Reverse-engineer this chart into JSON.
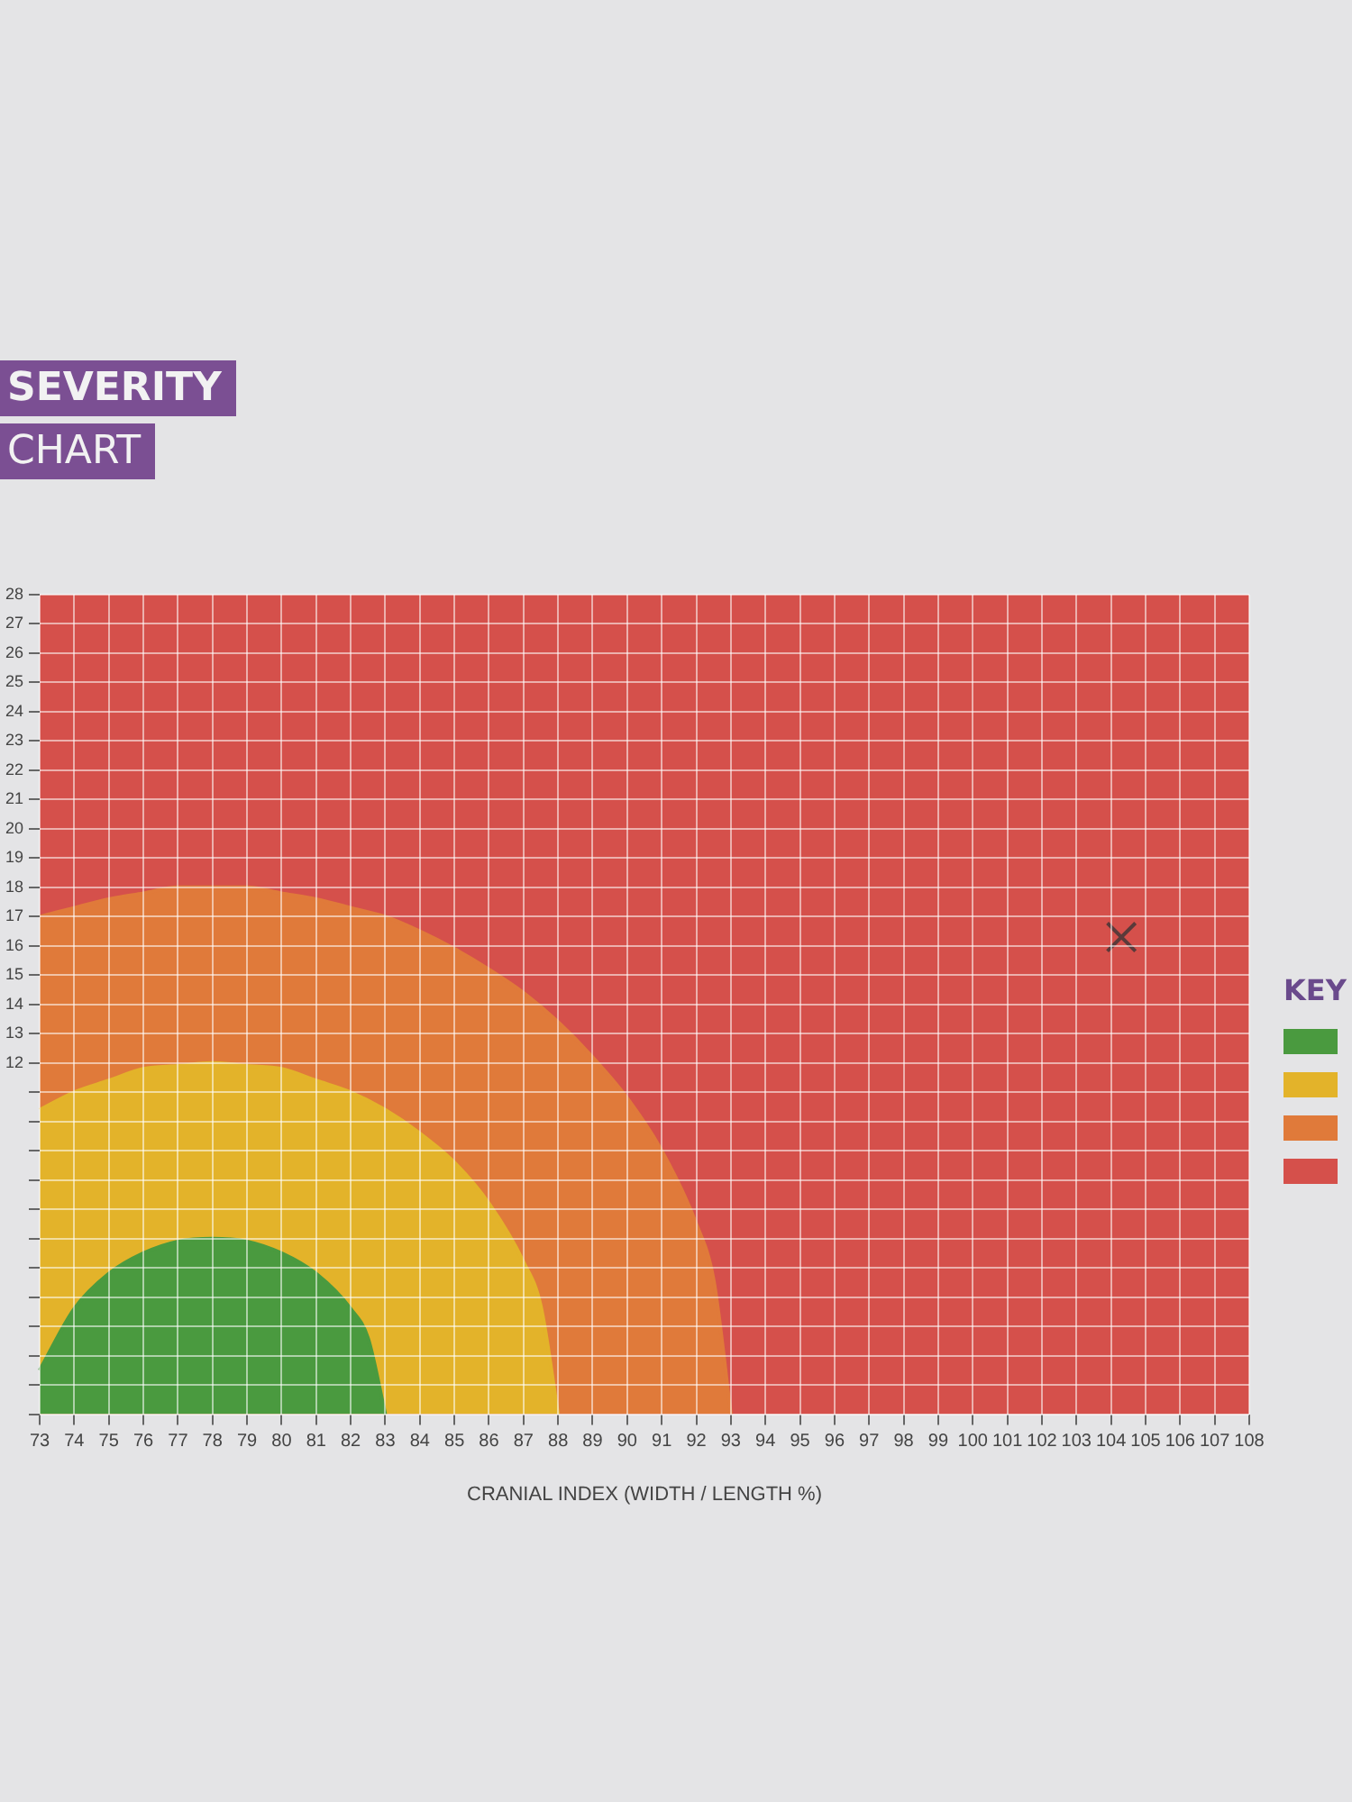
{
  "chart_data": {
    "type": "area",
    "title": "SEVERITY",
    "subtitle": "CHART",
    "xlabel": "CRANIAL INDEX (WIDTH / LENGTH %)",
    "annotations": [
      "KEY"
    ],
    "grid": true,
    "bands": [
      {
        "axis": "y",
        "from": 0,
        "to": 28,
        "color": "#d5504b"
      }
    ],
    "xlim": [
      73,
      108
    ],
    "xticks": [
      73,
      74,
      75,
      76,
      77,
      78,
      79,
      80,
      81,
      82,
      83,
      84,
      85,
      86,
      87,
      88,
      89,
      90,
      91,
      92,
      93,
      94,
      95,
      96,
      97,
      98,
      99,
      100,
      101,
      102,
      103,
      104,
      105,
      106,
      107,
      108
    ],
    "ylim": [
      0,
      28
    ],
    "yticks": [
      {
        "value": 0,
        "label": null
      },
      {
        "value": 1,
        "label": null
      },
      {
        "value": 2,
        "label": null
      },
      {
        "value": 3,
        "label": null
      },
      {
        "value": 4,
        "label": null
      },
      {
        "value": 5,
        "label": null
      },
      {
        "value": 6,
        "label": null
      },
      {
        "value": 7,
        "label": null
      },
      {
        "value": 8,
        "label": null
      },
      {
        "value": 9,
        "label": null
      },
      {
        "value": 10,
        "label": null
      },
      {
        "value": 11,
        "label": null
      },
      12,
      13,
      14,
      15,
      16,
      17,
      18,
      19,
      20,
      21,
      22,
      23,
      24,
      25,
      26,
      27,
      28
    ],
    "series": [
      {
        "color": "#4a9a3f",
        "x": [
          73,
          74,
          75,
          76,
          77,
          78,
          79,
          80,
          81,
          82,
          82.5,
          83
        ],
        "values": [
          1.5,
          3.6,
          4.8,
          5.5,
          5.9,
          6,
          5.9,
          5.5,
          4.8,
          3.6,
          2.6,
          0
        ]
      },
      {
        "color": "#e3b32a",
        "x": [
          73,
          74,
          75,
          76,
          77,
          78,
          79,
          80,
          81,
          82,
          83,
          84,
          85,
          86,
          87,
          87.5,
          88
        ],
        "values": [
          10.4,
          11,
          11.4,
          11.8,
          11.9,
          12,
          11.9,
          11.8,
          11.4,
          11,
          10.4,
          9.6,
          8.6,
          7.2,
          5.2,
          3.7,
          0
        ]
      },
      {
        "color": "#e07a3a",
        "x": [
          73,
          74,
          75,
          76,
          77,
          78,
          79,
          80,
          81,
          82,
          83,
          84,
          85,
          86,
          87,
          88,
          89,
          90,
          91,
          92,
          92.5,
          93
        ],
        "values": [
          17,
          17.3,
          17.6,
          17.8,
          18,
          18,
          18,
          17.8,
          17.6,
          17.3,
          17,
          16.5,
          15.9,
          15.2,
          14.4,
          13.4,
          12.2,
          10.8,
          9,
          6.5,
          4.6,
          0
        ]
      },
      {
        "type": "scatter",
        "color": "#5a3a3a",
        "marker": "cross",
        "x": [
          104.3
        ],
        "values": [
          16.3
        ]
      }
    ]
  }
}
